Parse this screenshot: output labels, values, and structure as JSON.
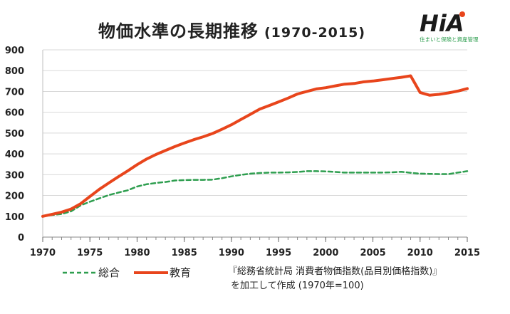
{
  "title": "物価水準の長期推移",
  "title_paren": "(1970-2015)",
  "logo": {
    "text": "HiA",
    "tagline": "住まいと保険と資産管理"
  },
  "source_line1": "『総務省統計局 消費者物価指数(品目別価格指数)』",
  "source_line2": "を加工して作成 (1970年=100)",
  "chart_data": {
    "type": "line",
    "x": [
      1970,
      1971,
      1972,
      1973,
      1974,
      1975,
      1976,
      1977,
      1978,
      1979,
      1980,
      1981,
      1982,
      1983,
      1984,
      1985,
      1986,
      1987,
      1988,
      1989,
      1990,
      1991,
      1992,
      1993,
      1994,
      1995,
      1996,
      1997,
      1998,
      1999,
      2000,
      2001,
      2002,
      2003,
      2004,
      2005,
      2006,
      2007,
      2008,
      2009,
      2010,
      2011,
      2012,
      2013,
      2014,
      2015
    ],
    "xticks": [
      1970,
      1975,
      1980,
      1985,
      1990,
      1995,
      2000,
      2005,
      2010,
      2015
    ],
    "ylim": [
      0,
      900
    ],
    "yticks": [
      0,
      100,
      200,
      300,
      400,
      500,
      600,
      700,
      800,
      900
    ],
    "grid": true,
    "legend_position": "bottom-left",
    "series": [
      {
        "name": "総合",
        "color": "#2e9e4f",
        "style": "dashed",
        "values": [
          100,
          106,
          111,
          124,
          152,
          170,
          186,
          202,
          214,
          225,
          243,
          254,
          260,
          265,
          272,
          274,
          275,
          275,
          276,
          283,
          292,
          299,
          305,
          308,
          310,
          310,
          311,
          313,
          317,
          317,
          316,
          313,
          310,
          310,
          310,
          310,
          310,
          311,
          314,
          309,
          305,
          304,
          303,
          303,
          310,
          317
        ]
      },
      {
        "name": "教育",
        "color": "#e8451c",
        "style": "solid",
        "values": [
          100,
          110,
          120,
          135,
          160,
          195,
          230,
          260,
          290,
          318,
          348,
          375,
          397,
          416,
          435,
          452,
          468,
          482,
          498,
          518,
          540,
          565,
          590,
          615,
          632,
          650,
          668,
          688,
          700,
          712,
          718,
          727,
          735,
          738,
          746,
          750,
          756,
          762,
          768,
          775,
          695,
          682,
          686,
          693,
          702,
          714
        ]
      }
    ]
  }
}
